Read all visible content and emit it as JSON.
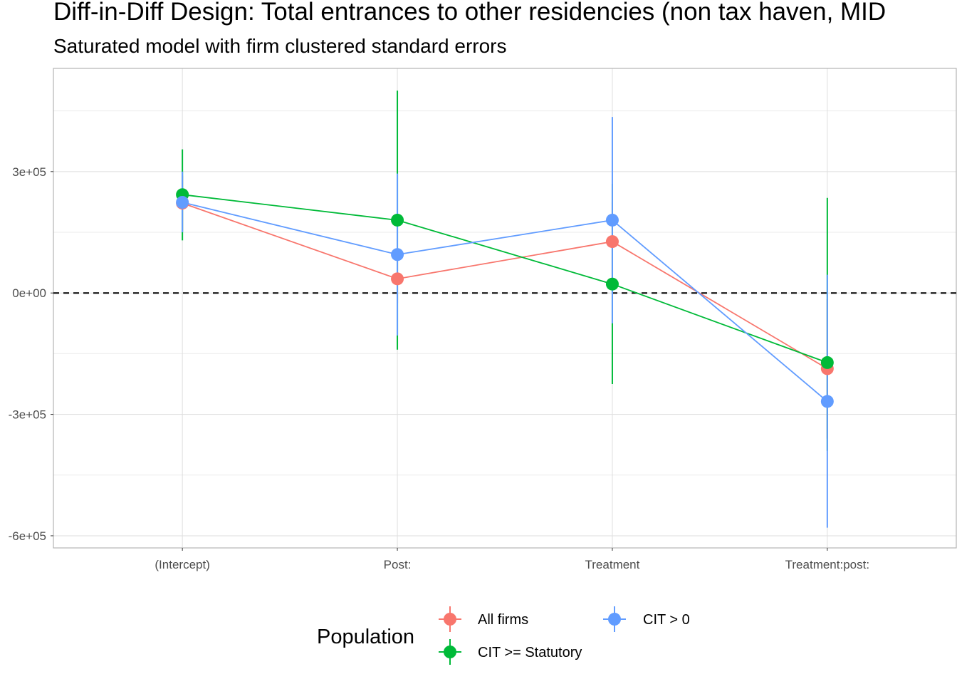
{
  "chart_data": {
    "type": "scatter",
    "title": "Diff-in-Diff Design: Total entrances to other residencies (non tax haven, MID",
    "subtitle": "Saturated model with firm clustered standard errors",
    "categories": [
      "(Intercept)",
      "Post:",
      "Treatment",
      "Treatment:post:"
    ],
    "y_ticks": [
      {
        "value": 300000,
        "label": "3e+05"
      },
      {
        "value": 0,
        "label": "0e+00"
      },
      {
        "value": -300000,
        "label": "-3e+05"
      },
      {
        "value": -600000,
        "label": "-6e+05"
      }
    ],
    "ylim": [
      -630000,
      555000
    ],
    "reference_line": 0,
    "legend": {
      "title": "Population",
      "placement": "bottom"
    },
    "series": [
      {
        "name": "All firms",
        "color": "#F8766D",
        "values": [
          222000,
          35000,
          127000,
          -187000
        ],
        "ci_low": [
          155000,
          -25000,
          30000,
          -360000
        ],
        "ci_high": [
          290000,
          95000,
          225000,
          -15000
        ]
      },
      {
        "name": "CIT >= Statutory",
        "color": "#00BA38",
        "values": [
          243000,
          180000,
          22000,
          -172000
        ],
        "ci_low": [
          130000,
          -140000,
          -225000,
          -390000
        ],
        "ci_high": [
          355000,
          500000,
          270000,
          235000
        ]
      },
      {
        "name": "CIT > 0",
        "color": "#619CFF",
        "values": [
          224000,
          95000,
          180000,
          -268000
        ],
        "ci_low": [
          150000,
          -105000,
          -75000,
          -580000
        ],
        "ci_high": [
          300000,
          295000,
          435000,
          45000
        ]
      }
    ]
  }
}
